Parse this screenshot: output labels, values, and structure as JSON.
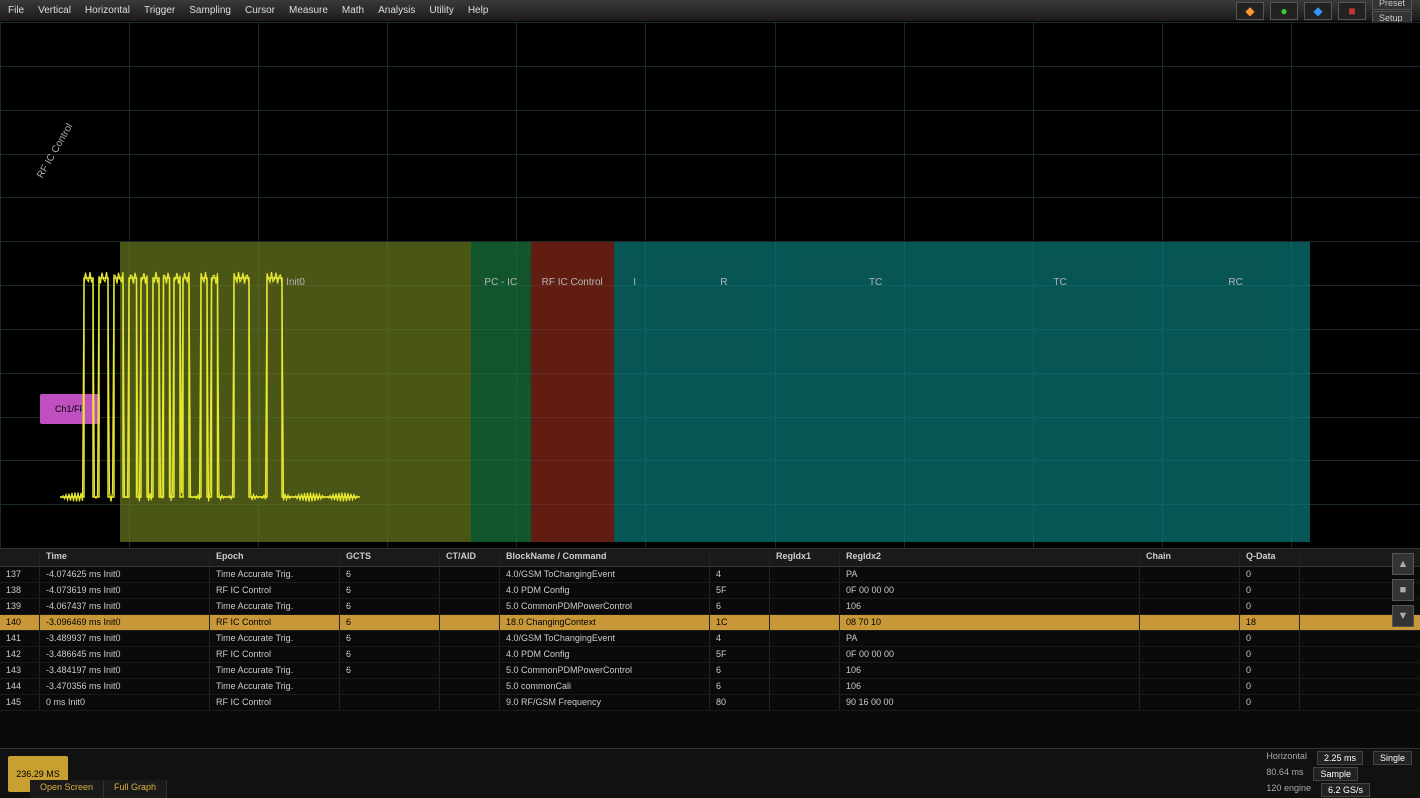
{
  "menu": {
    "items": [
      "File",
      "Vertical",
      "Horizontal",
      "Trigger",
      "Sampling",
      "Cursor",
      "Measure",
      "Math",
      "Analysis",
      "Utility",
      "Help"
    ]
  },
  "toolbar": {
    "preset_label": "Preset",
    "setup_label": "Setup"
  },
  "toolbar_icons": [
    {
      "glyph": "◆",
      "color": "#ff9933"
    },
    {
      "glyph": "●",
      "color": "#33cc33"
    },
    {
      "glyph": "◆",
      "color": "#3399ff"
    },
    {
      "glyph": "■",
      "color": "#cc3333"
    }
  ],
  "waveform": {
    "channel_label": "Ch1/FF",
    "axis_label": "RF IC Control",
    "grid": {
      "h_lines": 12,
      "v_lines": 11,
      "color": "#1a2a2a"
    },
    "zones": [
      {
        "label": "Init0",
        "width_pct": 29.5,
        "color": "#6a7a20"
      },
      {
        "label": "PC - IC",
        "width_pct": 5.0,
        "color": "#1a7a40"
      },
      {
        "label": "RF IC Control",
        "width_pct": 7.0,
        "color": "#8a2a1a"
      },
      {
        "label": "I",
        "width_pct": 3.5,
        "color": "#0a7a7a"
      },
      {
        "label": "R",
        "width_pct": 11.5,
        "color": "#0a7a7a"
      },
      {
        "label": "TC",
        "width_pct": 14.0,
        "color": "#0a7a7a"
      },
      {
        "label": "TC",
        "width_pct": 17.0,
        "color": "#0a7a7a"
      },
      {
        "label": "RC",
        "width_pct": 12.5,
        "color": "#0a7a7a"
      }
    ],
    "trace_color": "#e8e830",
    "background": "#000000",
    "pulses": [
      {
        "start": 8,
        "width": 3,
        "height": 0.95
      },
      {
        "start": 13,
        "width": 3,
        "height": 0.95
      },
      {
        "start": 18,
        "width": 3,
        "height": 0.95
      },
      {
        "start": 23,
        "width": 2.5,
        "height": 0.95
      },
      {
        "start": 27,
        "width": 2,
        "height": 0.95
      },
      {
        "start": 31,
        "width": 2,
        "height": 0.95
      },
      {
        "start": 34.5,
        "width": 2,
        "height": 0.95
      },
      {
        "start": 38,
        "width": 2,
        "height": 0.95
      },
      {
        "start": 41,
        "width": 2,
        "height": 0.95
      },
      {
        "start": 47,
        "width": 2,
        "height": 0.95
      },
      {
        "start": 50.5,
        "width": 2,
        "height": 0.95
      },
      {
        "start": 58,
        "width": 5,
        "height": 0.95
      },
      {
        "start": 69,
        "width": 5,
        "height": 0.95
      }
    ]
  },
  "table": {
    "columns": [
      "",
      "Time",
      "Epoch",
      "GCTS",
      "CT/AID",
      "BlockName / Command",
      "",
      "RegIdx1",
      "RegIdx2",
      "Chain",
      "Q-Data"
    ],
    "rows": [
      {
        "idx": "137",
        "time": "-4.074625 ms Init0",
        "epoch": "Time Accurate Trig.",
        "gcts": "6",
        "ctaid": "",
        "block": "4.0/GSM ToChangingEvent",
        "cmd": "4",
        "reg1": "",
        "reg2": "PA",
        "chain": "",
        "qdata": "0",
        "hl": false
      },
      {
        "idx": "138",
        "time": "-4.073619 ms Init0",
        "epoch": "RF IC Control",
        "gcts": "6",
        "ctaid": "",
        "block": "4.0 PDM Config",
        "cmd": "5F",
        "reg1": "",
        "reg2": "0F 00 00 00",
        "chain": "",
        "qdata": "0",
        "hl": false
      },
      {
        "idx": "139",
        "time": "-4.067437 ms Init0",
        "epoch": "Time Accurate Trig.",
        "gcts": "6",
        "ctaid": "",
        "block": "5.0 CommonPDMPowerControl",
        "cmd": "6",
        "reg1": "",
        "reg2": "106",
        "chain": "",
        "qdata": "0",
        "hl": false
      },
      {
        "idx": "140",
        "time": "-3.096469 ms Init0",
        "epoch": "RF IC Control",
        "gcts": "6",
        "ctaid": "",
        "block": "18.0 ChangingContext",
        "cmd": "1C",
        "reg1": "",
        "reg2": "08 70 10",
        "chain": "",
        "qdata": "18",
        "hl": true
      },
      {
        "idx": "141",
        "time": "-3.489937 ms Init0",
        "epoch": "Time Accurate Trig.",
        "gcts": "6",
        "ctaid": "",
        "block": "4.0/GSM ToChangingEvent",
        "cmd": "4",
        "reg1": "",
        "reg2": "PA",
        "chain": "",
        "qdata": "0",
        "hl": false
      },
      {
        "idx": "142",
        "time": "-3.486645 ms Init0",
        "epoch": "RF IC Control",
        "gcts": "6",
        "ctaid": "",
        "block": "4.0 PDM Config",
        "cmd": "5F",
        "reg1": "",
        "reg2": "0F 00 00 00",
        "chain": "",
        "qdata": "0",
        "hl": false
      },
      {
        "idx": "143",
        "time": "-3.484197 ms Init0",
        "epoch": "Time Accurate Trig.",
        "gcts": "6",
        "ctaid": "",
        "block": "5.0 CommonPDMPowerControl",
        "cmd": "6",
        "reg1": "",
        "reg2": "106",
        "chain": "",
        "qdata": "0",
        "hl": false
      },
      {
        "idx": "144",
        "time": "-3.470356 ms Init0",
        "epoch": "Time Accurate Trig.",
        "gcts": "",
        "ctaid": "",
        "block": "5.0 commonCali",
        "cmd": "6",
        "reg1": "",
        "reg2": "106",
        "chain": "",
        "qdata": "0",
        "hl": false
      },
      {
        "idx": "145",
        "time": "0 ms Init0",
        "epoch": "RF IC Control",
        "gcts": "",
        "ctaid": "",
        "block": "9.0 RF/GSM Frequency",
        "cmd": "80",
        "reg1": "",
        "reg2": "90 16 00 00",
        "chain": "",
        "qdata": "0",
        "hl": false
      }
    ]
  },
  "bottom": {
    "ch_badge": "236.29 MS",
    "horizontal_label": "Horizontal",
    "horizontal_val": "2.25 ms",
    "single_label": "Single",
    "sample_label": "Sample",
    "rate_label": "120 engine",
    "rate_val": "6.2 GS/s",
    "trigger_val": "80.64 ms"
  },
  "tabs": {
    "items": [
      "Open Screen",
      "Full Graph"
    ]
  },
  "colors": {
    "bg": "#000000",
    "grid": "#1a2a2a",
    "menu_bg": "#2a2a2a",
    "highlight_row": "#c89838",
    "trace": "#e8e830",
    "ch_marker": "#c050c0"
  }
}
